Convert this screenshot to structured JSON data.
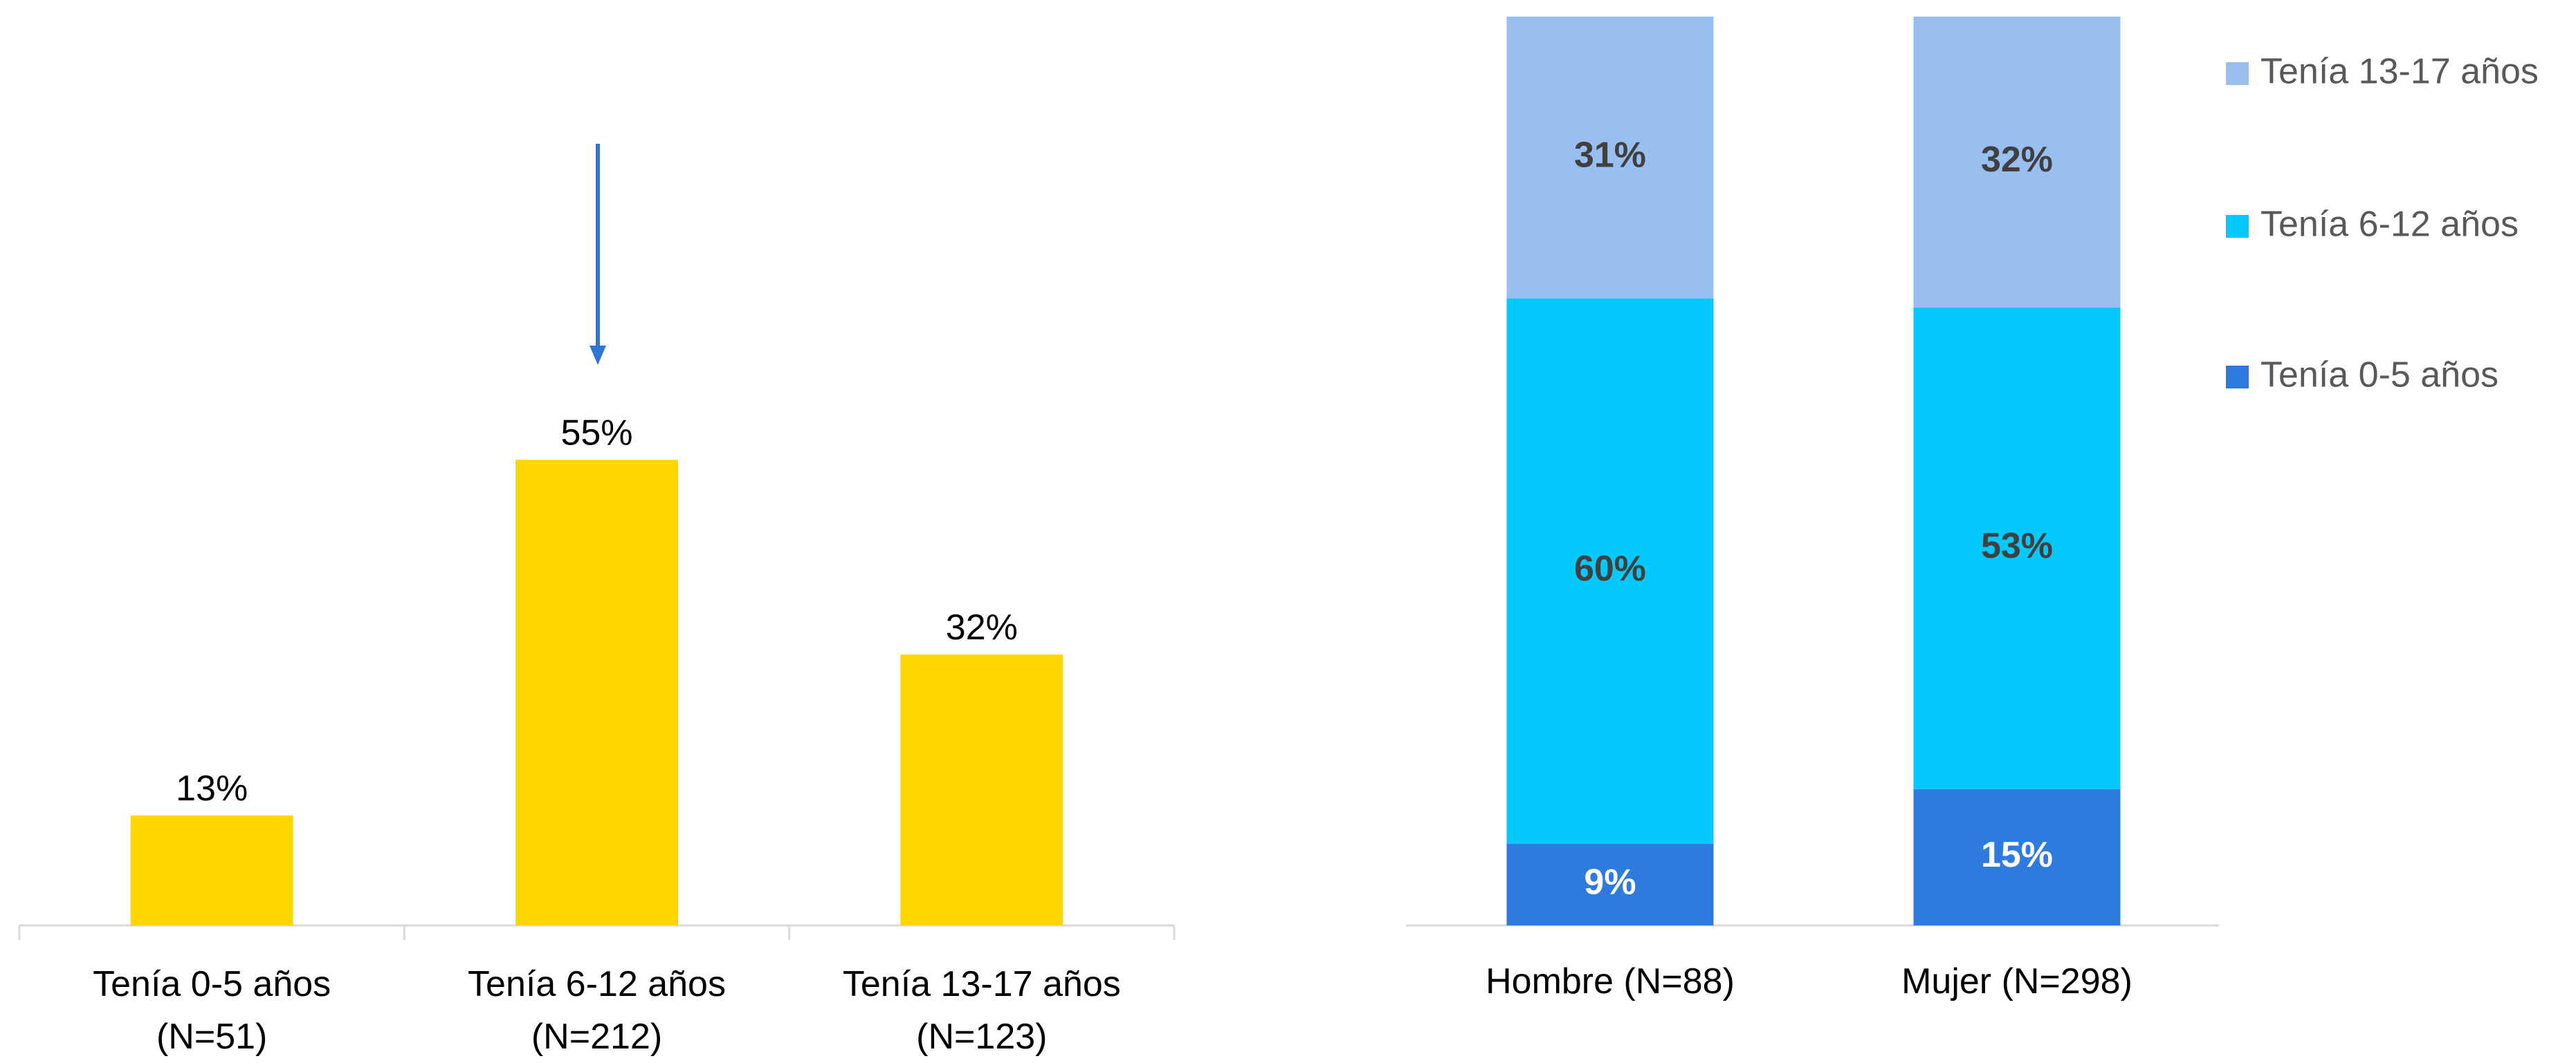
{
  "chart_data": [
    {
      "type": "bar",
      "categories": [
        "Tenía 0-5 años\n(N=51)",
        "Tenía 6-12 años\n(N=212)",
        "Tenía 13-17 años\n(N=123)"
      ],
      "values": [
        13,
        55,
        32
      ],
      "value_labels": [
        "13%",
        "55%",
        "32%"
      ],
      "color": "#ffd700",
      "ylim": [
        0,
        60
      ]
    },
    {
      "type": "stacked_bar",
      "categories": [
        "Hombre (N=88)",
        "Mujer (N=298)"
      ],
      "series": [
        {
          "name": "Tenía 0-5 años",
          "color": "#2e7be0",
          "label_color": "#ffffff",
          "values": [
            9,
            15
          ],
          "value_labels": [
            "9%",
            "15%"
          ]
        },
        {
          "name": "Tenía 6-12 años",
          "color": "#05c8fc",
          "label_color": "#404040",
          "values": [
            60,
            53
          ],
          "value_labels": [
            "60%",
            "53%"
          ]
        },
        {
          "name": "Tenía 13-17 años",
          "color": "#98bff0",
          "label_color": "#404040",
          "values": [
            31,
            32
          ],
          "value_labels": [
            "31%",
            "32%"
          ]
        }
      ],
      "ylim": [
        0,
        100
      ],
      "legend": "right"
    }
  ]
}
